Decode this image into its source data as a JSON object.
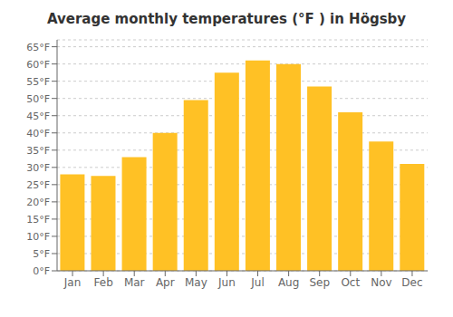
{
  "chart_data": {
    "type": "bar",
    "title": "Average monthly temperatures (°F ) in Högsby",
    "categories": [
      "Jan",
      "Feb",
      "Mar",
      "Apr",
      "May",
      "Jun",
      "Jul",
      "Aug",
      "Sep",
      "Oct",
      "Nov",
      "Dec"
    ],
    "values": [
      28,
      27.5,
      33,
      40,
      49.5,
      57.5,
      61,
      60,
      53.5,
      46,
      37.5,
      31
    ],
    "color": "#FFC125",
    "ylim": [
      0,
      67
    ],
    "yticks": [
      {
        "value": 0,
        "label": "0°F"
      },
      {
        "value": 5,
        "label": "5°F"
      },
      {
        "value": 10,
        "label": "10°F"
      },
      {
        "value": 15,
        "label": "15°F"
      },
      {
        "value": 20,
        "label": "20°F"
      },
      {
        "value": 25,
        "label": "25°F"
      },
      {
        "value": 30,
        "label": "30°F"
      },
      {
        "value": 35,
        "label": "35°F"
      },
      {
        "value": 40,
        "label": "40°F"
      },
      {
        "value": 45,
        "label": "45°F"
      },
      {
        "value": 50,
        "label": "50°F"
      },
      {
        "value": 55,
        "label": "55°F"
      },
      {
        "value": 60,
        "label": "60°F"
      },
      {
        "value": 65,
        "label": "65°F"
      }
    ],
    "grid": true
  }
}
